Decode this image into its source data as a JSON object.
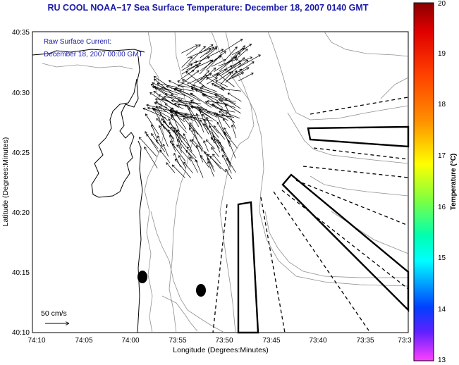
{
  "title": "RU COOL  NOAA−17  Sea Surface Temperature:  December 18, 2007 0140 GMT",
  "info_line1": "Raw Surface Current:",
  "info_line2": "December 18, 2007 00:00 GMT",
  "scale_label": "50 cm/s",
  "axes": {
    "xlabel": "Longitude (Degrees:Minutes)",
    "ylabel": "Latitude (Degrees:Minutes)",
    "x_ticks": [
      "74:10",
      "74:05",
      "74:00",
      "73:55",
      "73:50",
      "73:45",
      "73:40",
      "73:35",
      "73:3"
    ],
    "y_ticks": [
      "40:35",
      "40:30",
      "40:25",
      "40:20",
      "40:15",
      "40:10"
    ]
  },
  "colorbar": {
    "label": "Temperature (°C)",
    "ticks": [
      "20",
      "19",
      "18",
      "17",
      "16",
      "15",
      "14",
      "13"
    ],
    "range": [
      13,
      20
    ],
    "colors": [
      "#8b0000",
      "#ff0000",
      "#ff8000",
      "#ffff00",
      "#00ff80",
      "#00ffff",
      "#0000ff",
      "#ff40ff"
    ]
  },
  "colors": {
    "title": "#1a1aa8",
    "info_text": "#1a1aa8"
  }
}
